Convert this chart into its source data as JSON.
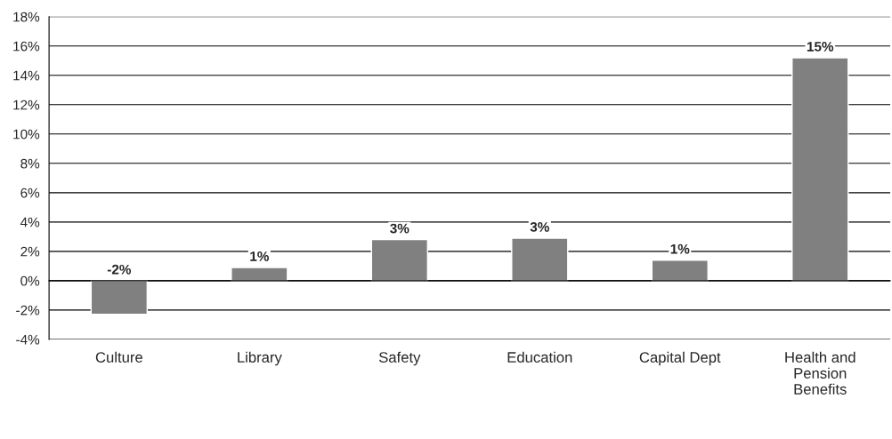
{
  "chart_data": {
    "type": "bar",
    "categories": [
      "Culture",
      "Library",
      "Safety",
      "Education",
      "Capital Dept",
      "Health and Pension Benefits"
    ],
    "values": [
      -2.3,
      0.9,
      2.8,
      2.9,
      1.4,
      15.2
    ],
    "value_labels": [
      "-2%",
      "1%",
      "3%",
      "3%",
      "1%",
      "15%"
    ],
    "color": "#808080",
    "ylim": [
      -4,
      18
    ],
    "yticks": [
      {
        "value": -4,
        "label": "-4%"
      },
      {
        "value": -2,
        "label": "-2%"
      },
      {
        "value": 0,
        "label": "0%"
      },
      {
        "value": 2,
        "label": "2%"
      },
      {
        "value": 4,
        "label": "4%"
      },
      {
        "value": 6,
        "label": "6%"
      },
      {
        "value": 8,
        "label": "8%"
      },
      {
        "value": 10,
        "label": "10%"
      },
      {
        "value": 12,
        "label": "12%"
      },
      {
        "value": 14,
        "label": "14%"
      },
      {
        "value": 16,
        "label": "16%"
      },
      {
        "value": 18,
        "label": "18%"
      }
    ],
    "grid": "y"
  }
}
